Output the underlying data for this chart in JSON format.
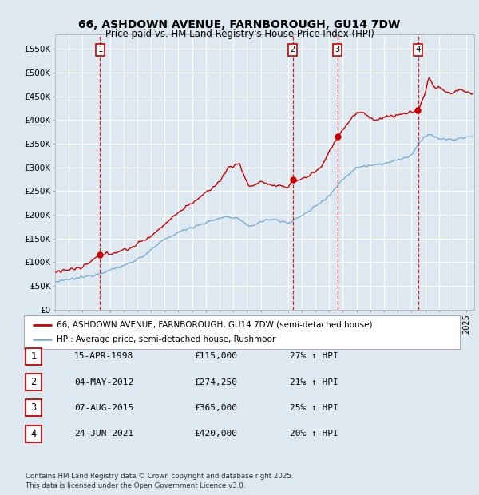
{
  "title_line1": "66, ASHDOWN AVENUE, FARNBOROUGH, GU14 7DW",
  "title_line2": "Price paid vs. HM Land Registry's House Price Index (HPI)",
  "purchases": [
    {
      "label": "1",
      "date": "1998-04-15",
      "price": 115000,
      "pct": "27% ↑ HPI",
      "date_str": "15-APR-1998"
    },
    {
      "label": "2",
      "date": "2012-05-04",
      "price": 274250,
      "pct": "21% ↑ HPI",
      "date_str": "04-MAY-2012"
    },
    {
      "label": "3",
      "date": "2015-08-07",
      "price": 365000,
      "pct": "25% ↑ HPI",
      "date_str": "07-AUG-2015"
    },
    {
      "label": "4",
      "date": "2021-06-24",
      "price": 420000,
      "pct": "20% ↑ HPI",
      "date_str": "24-JUN-2021"
    }
  ],
  "legend_property": "66, ASHDOWN AVENUE, FARNBOROUGH, GU14 7DW (semi-detached house)",
  "legend_hpi": "HPI: Average price, semi-detached house, Rushmoor",
  "property_color": "#cc0000",
  "hpi_color": "#7bafd4",
  "ylabel_ticks": [
    "£0",
    "£50K",
    "£100K",
    "£150K",
    "£200K",
    "£250K",
    "£300K",
    "£350K",
    "£400K",
    "£450K",
    "£500K",
    "£550K"
  ],
  "ytick_values": [
    0,
    50000,
    100000,
    150000,
    200000,
    250000,
    300000,
    350000,
    400000,
    450000,
    500000,
    550000
  ],
  "ylim": [
    0,
    580000
  ],
  "footer": "Contains HM Land Registry data © Crown copyright and database right 2025.\nThis data is licensed under the Open Government Licence v3.0.",
  "background_color": "#dde8f0",
  "plot_bg_color": "#dde8f0",
  "grid_color": "#ffffff"
}
